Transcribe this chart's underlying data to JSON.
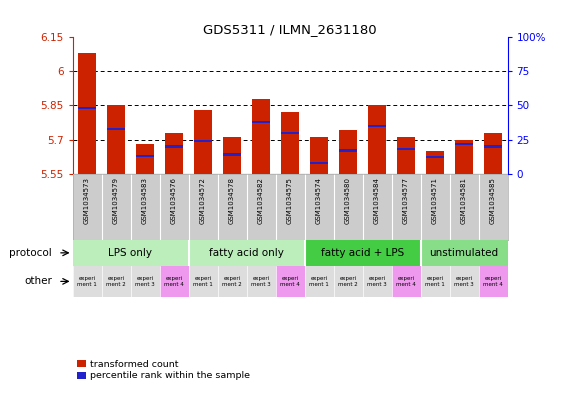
{
  "title": "GDS5311 / ILMN_2631180",
  "samples": [
    "GSM1034573",
    "GSM1034579",
    "GSM1034583",
    "GSM1034576",
    "GSM1034572",
    "GSM1034578",
    "GSM1034582",
    "GSM1034575",
    "GSM1034574",
    "GSM1034580",
    "GSM1034584",
    "GSM1034577",
    "GSM1034571",
    "GSM1034581",
    "GSM1034585"
  ],
  "transformed_count": [
    6.08,
    5.85,
    5.68,
    5.73,
    5.83,
    5.71,
    5.88,
    5.82,
    5.71,
    5.74,
    5.85,
    5.71,
    5.65,
    5.7,
    5.73
  ],
  "percentile_rank": [
    48,
    33,
    13,
    20,
    24,
    14,
    38,
    30,
    8,
    17,
    35,
    18,
    12,
    22,
    20
  ],
  "ylim_left": [
    5.55,
    6.15
  ],
  "ylim_right": [
    0,
    100
  ],
  "yticks_left": [
    5.55,
    5.7,
    5.85,
    6.0,
    6.15
  ],
  "yticks_right": [
    0,
    25,
    50,
    75,
    100
  ],
  "ytick_labels_left": [
    "5.55",
    "5.7",
    "5.85",
    "6",
    "6.15"
  ],
  "ytick_labels_right": [
    "0",
    "25",
    "50",
    "75",
    "100%"
  ],
  "groups": [
    {
      "label": "LPS only",
      "start": 0,
      "end": 3
    },
    {
      "label": "fatty acid only",
      "start": 4,
      "end": 7
    },
    {
      "label": "fatty acid + LPS",
      "start": 8,
      "end": 11
    },
    {
      "label": "unstimulated",
      "start": 12,
      "end": 14
    }
  ],
  "group_colors": [
    "#bbeebb",
    "#bbeebb",
    "#44cc44",
    "#88dd88"
  ],
  "experiment_labels": [
    "experi\nment 1",
    "experi\nment 2",
    "experi\nment 3",
    "experi\nment 4",
    "experi\nment 1",
    "experi\nment 2",
    "experi\nment 3",
    "experi\nment 4",
    "experi\nment 1",
    "experi\nment 2",
    "experi\nment 3",
    "experi\nment 4",
    "experi\nment 1",
    "experi\nment 3",
    "experi\nment 4"
  ],
  "experiment_colors": [
    "#dddddd",
    "#dddddd",
    "#dddddd",
    "#ee99ee",
    "#dddddd",
    "#dddddd",
    "#dddddd",
    "#ee99ee",
    "#dddddd",
    "#dddddd",
    "#dddddd",
    "#ee99ee",
    "#dddddd",
    "#dddddd",
    "#ee99ee"
  ],
  "bar_color": "#cc2200",
  "dot_color": "#2222cc",
  "sample_bg": "#cccccc"
}
